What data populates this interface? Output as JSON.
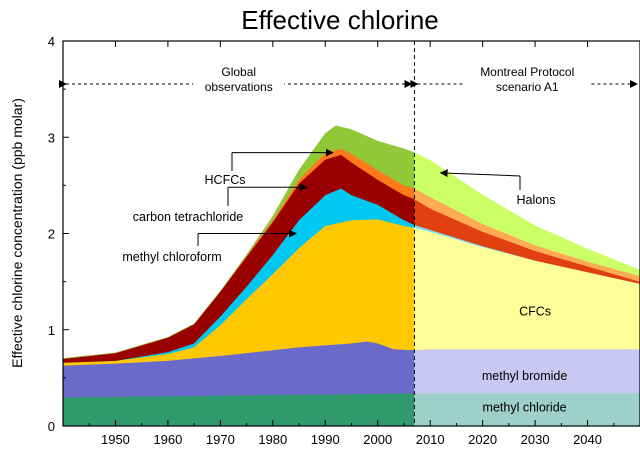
{
  "chart_data": {
    "type": "area",
    "title": "Effective chlorine",
    "ylabel": "Effective chlorine concentration (ppb molar)",
    "xlabel": "",
    "xlim": [
      1940,
      2050
    ],
    "ylim": [
      0,
      4
    ],
    "x_ticks": [
      1950,
      1960,
      1970,
      1980,
      1990,
      2000,
      2010,
      2020,
      2030,
      2040
    ],
    "y_ticks": [
      0,
      1,
      2,
      3,
      4
    ],
    "divider_year": 2007,
    "regions": [
      {
        "label_lines": [
          "Global",
          "observations"
        ]
      },
      {
        "label_lines": [
          "Montreal Protocol",
          "scenario A1"
        ]
      }
    ],
    "series_note": "values are cumulative (stacked top) concentrations in ppb",
    "series": [
      {
        "name": "methyl chloride",
        "color_obs": "#2e9a6e",
        "color_scn": "#9ed0cc",
        "x": [
          1940,
          2007,
          2050
        ],
        "top": [
          0.3,
          0.34,
          0.34
        ]
      },
      {
        "name": "methyl bromide",
        "color_obs": "#6a6acb",
        "color_scn": "#c8c8f2",
        "x": [
          1940,
          1950,
          1960,
          1970,
          1980,
          1985,
          1990,
          1995,
          1998,
          2000,
          2003,
          2007,
          2010,
          2020,
          2030,
          2040,
          2050
        ],
        "top": [
          0.63,
          0.65,
          0.68,
          0.73,
          0.79,
          0.82,
          0.84,
          0.86,
          0.88,
          0.86,
          0.8,
          0.79,
          0.8,
          0.8,
          0.8,
          0.8,
          0.8
        ]
      },
      {
        "name": "CFCs",
        "color_obs": "#ffc800",
        "color_scn": "#ffff99",
        "x": [
          1940,
          1950,
          1960,
          1965,
          1970,
          1975,
          1980,
          1985,
          1990,
          1995,
          2000,
          2005,
          2007,
          2010,
          2020,
          2030,
          2040,
          2050
        ],
        "top": [
          0.66,
          0.68,
          0.75,
          0.82,
          1.05,
          1.32,
          1.58,
          1.85,
          2.08,
          2.14,
          2.15,
          2.08,
          2.06,
          2.02,
          1.86,
          1.72,
          1.6,
          1.48
        ]
      },
      {
        "name": "methyl chloroform",
        "color_obs": "#00c8f0",
        "color_scn": "#80e0f8",
        "x": [
          1940,
          1950,
          1960,
          1965,
          1970,
          1975,
          1980,
          1985,
          1990,
          1993,
          1995,
          2000,
          2005,
          2007,
          2010,
          2020,
          2030,
          2040,
          2050
        ],
        "top": [
          0.66,
          0.68,
          0.77,
          0.86,
          1.14,
          1.45,
          1.78,
          2.14,
          2.4,
          2.47,
          2.4,
          2.3,
          2.14,
          2.09,
          2.04,
          1.87,
          1.72,
          1.6,
          1.48
        ]
      },
      {
        "name": "carbon tetrachloride",
        "color_obs": "#990000",
        "color_scn": "#e04010",
        "x": [
          1940,
          1950,
          1960,
          1965,
          1970,
          1975,
          1980,
          1985,
          1990,
          1993,
          1995,
          2000,
          2005,
          2007,
          2010,
          2020,
          2030,
          2040,
          2050
        ],
        "top": [
          0.7,
          0.76,
          0.92,
          1.06,
          1.4,
          1.76,
          2.12,
          2.52,
          2.77,
          2.82,
          2.74,
          2.56,
          2.4,
          2.36,
          2.26,
          2.02,
          1.82,
          1.66,
          1.5
        ]
      },
      {
        "name": "HCFCs",
        "color_obs": "#ff7a1a",
        "color_scn": "#ffaa55",
        "x": [
          1940,
          1950,
          1960,
          1965,
          1970,
          1975,
          1980,
          1985,
          1990,
          1993,
          1995,
          2000,
          2005,
          2007,
          2010,
          2020,
          2030,
          2040,
          2050
        ],
        "top": [
          0.7,
          0.76,
          0.92,
          1.06,
          1.4,
          1.77,
          2.14,
          2.56,
          2.84,
          2.88,
          2.83,
          2.66,
          2.5,
          2.47,
          2.38,
          2.1,
          1.88,
          1.71,
          1.56
        ]
      },
      {
        "name": "Halons",
        "color_obs": "#90c838",
        "color_scn": "#ccff66",
        "x": [
          1940,
          1950,
          1960,
          1965,
          1970,
          1975,
          1980,
          1985,
          1990,
          1992,
          1995,
          2000,
          2005,
          2007,
          2010,
          2020,
          2030,
          2040,
          2050
        ],
        "top": [
          0.7,
          0.76,
          0.92,
          1.06,
          1.4,
          1.78,
          2.18,
          2.66,
          3.04,
          3.12,
          3.08,
          2.96,
          2.88,
          2.84,
          2.76,
          2.4,
          2.08,
          1.84,
          1.62
        ]
      }
    ],
    "annotations": [
      {
        "text": "HCFCs",
        "target_x": 1992,
        "target_y": 2.84
      },
      {
        "text": "carbon tetrachloride",
        "target_x": 1987,
        "target_y": 2.48
      },
      {
        "text": "methyl chloroform",
        "target_x": 1985,
        "target_y": 2.0
      },
      {
        "text": "Halons",
        "target_x": 2012,
        "target_y": 2.62
      }
    ],
    "area_labels": [
      {
        "text": "CFCs",
        "x": 2030,
        "y": 1.19
      },
      {
        "text": "methyl bromide",
        "x": 2028,
        "y": 0.52
      },
      {
        "text": "methyl chloride",
        "x": 2028,
        "y": 0.19
      }
    ]
  }
}
